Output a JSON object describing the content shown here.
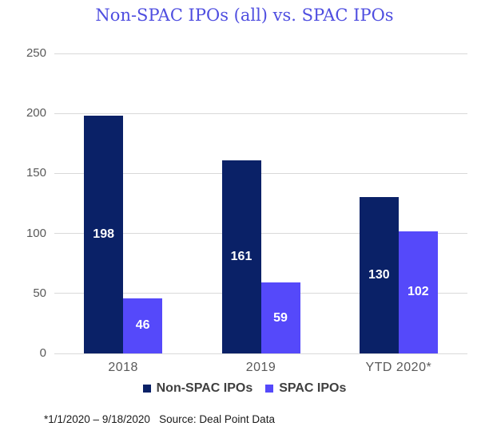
{
  "title": "Non-SPAC IPOs (all) vs. SPAC IPOs",
  "footnote": "*1/1/2020 – 9/18/2020   Source: Deal Point Data",
  "colors": {
    "title": "#4f4ee0",
    "non_spac": "#0a2167",
    "spac": "#5549fa",
    "gridline": "#d9d9d9",
    "axis_text": "#595959",
    "legend_text": "#3f3f3f",
    "data_label": "#ffffff",
    "footnote_text": "#1a1a1a",
    "background": "#ffffff"
  },
  "chart_data": {
    "type": "bar",
    "title": "Non-SPAC IPOs (all) vs. SPAC IPOs",
    "categories": [
      "2018",
      "2019",
      "YTD 2020*"
    ],
    "series": [
      {
        "name": "Non-SPAC IPOs",
        "color_key": "non_spac",
        "values": [
          198,
          161,
          130
        ]
      },
      {
        "name": "SPAC IPOs",
        "color_key": "spac",
        "values": [
          46,
          59,
          102
        ]
      }
    ],
    "xlabel": "",
    "ylabel": "",
    "ylim": [
      0,
      250
    ],
    "yticks": [
      0,
      50,
      100,
      150,
      200,
      250
    ],
    "grid": true,
    "data_labels": true,
    "legend_position": "bottom"
  }
}
